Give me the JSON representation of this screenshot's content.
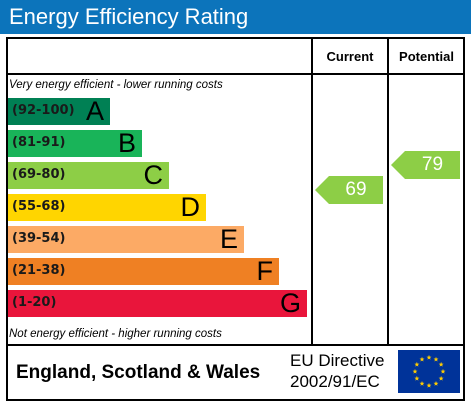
{
  "title": "Energy Efficiency Rating",
  "columns": {
    "current": "Current",
    "potential": "Potential"
  },
  "top_caption": "Very energy efficient - lower running costs",
  "bottom_caption": "Not energy efficient - higher running costs",
  "bands": [
    {
      "range": "(92-100)",
      "letter": "A",
      "color": "#008054"
    },
    {
      "range": "(81-91)",
      "letter": "B",
      "color": "#19b459"
    },
    {
      "range": "(69-80)",
      "letter": "C",
      "color": "#8dce46"
    },
    {
      "range": "(55-68)",
      "letter": "D",
      "color": "#ffd500"
    },
    {
      "range": "(39-54)",
      "letter": "E",
      "color": "#fcaa65"
    },
    {
      "range": "(21-38)",
      "letter": "F",
      "color": "#ef8023"
    },
    {
      "range": "(1-20)",
      "letter": "G",
      "color": "#e9153b"
    }
  ],
  "current_rating": {
    "value": "69",
    "color": "#8dce46"
  },
  "potential_rating": {
    "value": "79",
    "color": "#8dce46"
  },
  "footer": {
    "region": "England, Scotland & Wales",
    "directive_line1": "EU Directive",
    "directive_line2": "2002/91/EC",
    "flag_icon": "eu-flag-icon"
  },
  "colors": {
    "title_bar": "#0c74bb",
    "flag_blue": "#003399",
    "flag_star": "#ffcc00"
  }
}
